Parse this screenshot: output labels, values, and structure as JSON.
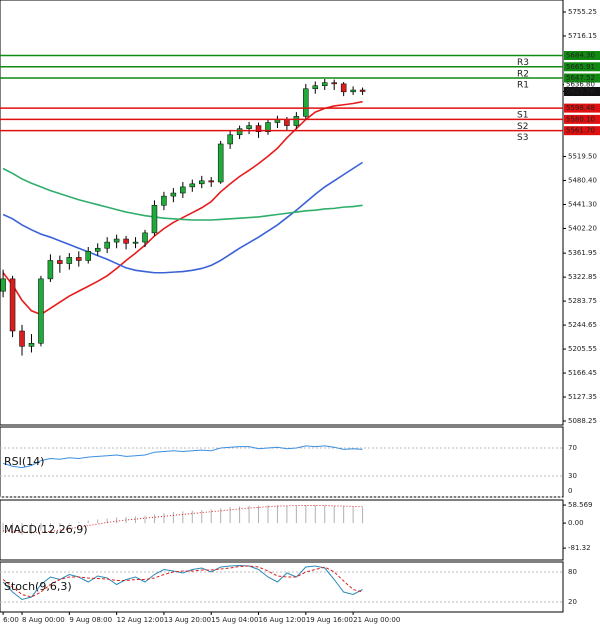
{
  "chart_data": [
    {
      "type": "candlestick",
      "categories": [
        "6:00",
        null,
        "8 Aug 00:00",
        null,
        null,
        null,
        null,
        "9 Aug 08:00",
        null,
        null,
        null,
        null,
        "12 Aug 12:00",
        null,
        null,
        null,
        null,
        "13 Aug 20:00",
        null,
        null,
        null,
        null,
        "15 Aug 04:00",
        null,
        null,
        null,
        null,
        "16 Aug 12:00",
        null,
        null,
        null,
        null,
        "19 Aug 16:00",
        null,
        null,
        null,
        null,
        "21 Aug 00:00",
        null
      ],
      "open": [
        5300,
        5320,
        5235,
        5210,
        5215,
        5320,
        5350,
        5345,
        5355,
        5350,
        5365,
        5370,
        5380,
        5385,
        5378,
        5380,
        5395,
        5440,
        5455,
        5460,
        5470,
        5475,
        5480,
        5478,
        5540,
        5555,
        5565,
        5570,
        5560,
        5575,
        5580,
        5570,
        5585,
        5630,
        5635,
        5640,
        5638,
        5625,
        5628
      ],
      "high": [
        5335,
        5325,
        5245,
        5230,
        5325,
        5360,
        5358,
        5362,
        5365,
        5372,
        5378,
        5388,
        5392,
        5390,
        5388,
        5400,
        5448,
        5462,
        5468,
        5478,
        5482,
        5488,
        5486,
        5545,
        5562,
        5570,
        5576,
        5575,
        5580,
        5586,
        5584,
        5592,
        5638,
        5642,
        5646,
        5645,
        5641,
        5634,
        5632
      ],
      "low": [
        5290,
        5225,
        5195,
        5200,
        5210,
        5315,
        5330,
        5335,
        5340,
        5345,
        5358,
        5362,
        5370,
        5368,
        5370,
        5372,
        5390,
        5432,
        5445,
        5452,
        5462,
        5468,
        5470,
        5475,
        5532,
        5548,
        5556,
        5550,
        5555,
        5566,
        5562,
        5565,
        5580,
        5622,
        5628,
        5628,
        5618,
        5620,
        5620
      ],
      "close": [
        5320,
        5235,
        5210,
        5215,
        5320,
        5350,
        5345,
        5355,
        5350,
        5365,
        5370,
        5380,
        5385,
        5378,
        5380,
        5395,
        5440,
        5455,
        5460,
        5470,
        5475,
        5480,
        5478,
        5540,
        5555,
        5565,
        5570,
        5560,
        5575,
        5580,
        5570,
        5585,
        5630,
        5635,
        5640,
        5638,
        5625,
        5628,
        5625.58
      ],
      "up_color": "#1faa3a",
      "down_color": "#d81e1e",
      "overlays": [
        {
          "color": "#e81c1c",
          "values": [
            5330,
            5310,
            5285,
            5268,
            5262,
            5272,
            5282,
            5292,
            5300,
            5308,
            5316,
            5325,
            5337,
            5350,
            5362,
            5375,
            5390,
            5402,
            5412,
            5420,
            5428,
            5436,
            5446,
            5462,
            5475,
            5487,
            5497,
            5508,
            5520,
            5533,
            5550,
            5565,
            5580,
            5592,
            5598,
            5602,
            5604,
            5606,
            5609
          ]
        },
        {
          "color": "#3a62d8",
          "values": [
            5425,
            5418,
            5408,
            5400,
            5393,
            5388,
            5382,
            5376,
            5370,
            5364,
            5358,
            5352,
            5345,
            5338,
            5334,
            5332,
            5330,
            5330,
            5331,
            5332,
            5334,
            5337,
            5342,
            5350,
            5360,
            5370,
            5379,
            5388,
            5398,
            5408,
            5420,
            5432,
            5445,
            5458,
            5470,
            5480,
            5490,
            5500,
            5510
          ]
        },
        {
          "color": "#2fae6a",
          "values": [
            5500,
            5492,
            5483,
            5476,
            5470,
            5464,
            5459,
            5454,
            5449,
            5445,
            5441,
            5437,
            5433,
            5429,
            5426,
            5423,
            5421,
            5419,
            5418,
            5417,
            5416,
            5416,
            5416,
            5417,
            5418,
            5419,
            5420,
            5421,
            5423,
            5425,
            5427,
            5429,
            5431,
            5432,
            5434,
            5435,
            5437,
            5438,
            5440
          ]
        }
      ],
      "ylim": [
        5081.7,
        5774.8
      ],
      "yticks": [
        5755.25,
        5716.15,
        {
          "value": 5519.5,
          "label": "5519.50"
        },
        {
          "value": 5480.4,
          "label": "5480.40"
        },
        {
          "value": 5441.3,
          "label": "5441.30"
        },
        {
          "value": 5402.2,
          "label": "5402.20"
        },
        5361.95,
        5322.85,
        5283.75,
        5244.65,
        5205.55,
        5166.45,
        5127.35,
        5088.25
      ],
      "levels": {
        "names": [
          "R3",
          "R2",
          "R1",
          "S1",
          "S2",
          "S3"
        ],
        "values": [
          5684.3,
          5665.91,
          5647.52,
          5598.48,
          5580.1,
          5561.7
        ],
        "value_labels": [
          "5684.30",
          "5665.91",
          "5647.52",
          "5598.48",
          "5580.10",
          "5561.70"
        ],
        "colors": [
          "#118a11",
          "#118a11",
          "#118a11",
          "#e01010",
          "#e01010",
          "#e01010"
        ]
      },
      "price_markers": [
        {
          "value": 5636.8,
          "label": "5636.80"
        },
        5625.58
      ]
    },
    {
      "type": "line",
      "title": "RSI(14)",
      "ylim": [
        0,
        100
      ],
      "yticks": [
        70,
        30,
        0
      ],
      "grid": true,
      "series": [
        {
          "color": "#3b8fe0",
          "values": [
            48,
            44,
            42,
            45,
            52,
            55,
            54,
            56,
            55,
            57,
            58,
            59,
            60,
            58,
            59,
            60,
            64,
            65,
            66,
            65,
            66,
            67,
            66,
            70,
            71,
            72,
            72,
            69,
            70,
            71,
            69,
            70,
            73,
            72,
            73,
            71,
            68,
            69,
            68
          ]
        }
      ]
    },
    {
      "type": "line",
      "title": "MACD(12,26,9)",
      "ylim": [
        -120,
        75
      ],
      "yticks": [
        58.569,
        {
          "value": 0,
          "label": "0.00"
        },
        -81.32
      ],
      "grid": false,
      "series": [
        {
          "kind": "bar",
          "color": "#b0b0b0",
          "values": [
            -30,
            -35,
            -38,
            -35,
            -25,
            -15,
            -8,
            -2,
            3,
            8,
            12,
            15,
            18,
            20,
            22,
            24,
            28,
            32,
            36,
            38,
            40,
            42,
            44,
            48,
            52,
            54,
            56,
            57,
            58,
            58,
            57,
            57,
            58,
            58,
            57,
            56,
            54,
            52,
            50
          ]
        },
        {
          "kind": "dotted",
          "color": "#e02020",
          "values": [
            -25,
            -28,
            -30,
            -31,
            -30,
            -27,
            -23,
            -18,
            -13,
            -8,
            -3,
            2,
            6,
            10,
            13,
            16,
            19,
            22,
            25,
            28,
            31,
            34,
            37,
            40,
            43,
            46,
            49,
            51,
            53,
            55,
            56,
            57,
            57,
            57,
            57,
            56,
            55,
            54,
            53
          ]
        }
      ]
    },
    {
      "type": "line",
      "title": "Stoch(9,6,3)",
      "ylim": [
        0,
        100
      ],
      "yticks": [
        80,
        20
      ],
      "grid": true,
      "series": [
        {
          "color": "#2a8ab8",
          "values": [
            60,
            40,
            25,
            30,
            55,
            70,
            65,
            75,
            70,
            60,
            72,
            68,
            55,
            65,
            70,
            60,
            75,
            85,
            82,
            78,
            85,
            88,
            80,
            90,
            92,
            93,
            92,
            85,
            70,
            60,
            78,
            70,
            90,
            92,
            88,
            65,
            40,
            35,
            45
          ]
        },
        {
          "kind": "dashed",
          "color": "#e02020",
          "values": [
            65,
            50,
            35,
            30,
            40,
            55,
            65,
            70,
            70,
            68,
            67,
            66,
            63,
            63,
            65,
            65,
            68,
            75,
            80,
            82,
            82,
            84,
            84,
            86,
            88,
            91,
            92,
            90,
            82,
            72,
            70,
            70,
            80,
            85,
            90,
            80,
            62,
            45,
            40
          ]
        }
      ]
    }
  ]
}
